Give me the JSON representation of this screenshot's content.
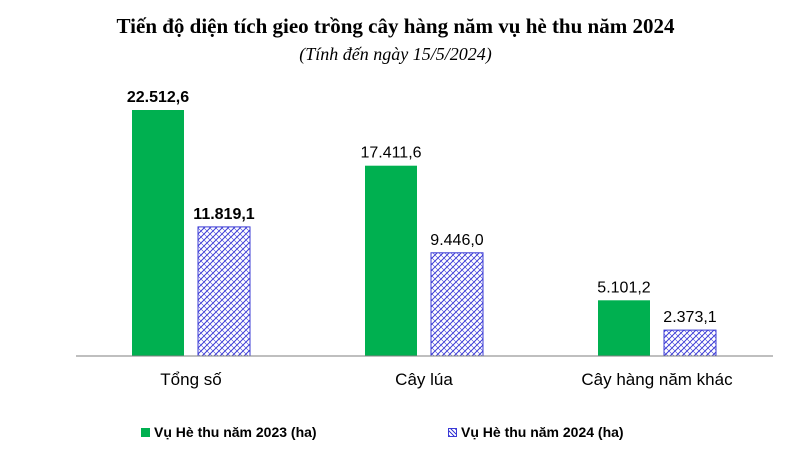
{
  "chart_data": {
    "type": "bar",
    "title": "Tiến độ diện tích gieo trồng cây hàng năm vụ hè thu năm 2024",
    "subtitle": "(Tính đến ngày 15/5/2024)",
    "categories": [
      "Tổng số",
      "Cây lúa",
      "Cây hàng năm khác"
    ],
    "series": [
      {
        "name": "Vụ Hè thu năm 2023 (ha)",
        "values": [
          22512.6,
          17411.6,
          5101.2
        ],
        "labels": [
          "22.512,6",
          "17.411,6",
          "5.101,2"
        ],
        "color": "#00b050",
        "pattern": "solid"
      },
      {
        "name": "Vụ Hè thu năm 2024 (ha)",
        "values": [
          11819.1,
          9446.0,
          2373.1
        ],
        "labels": [
          "11.819,1",
          "9.446,0",
          "2.373,1"
        ],
        "color": "#3b3bd6",
        "pattern": "hatch"
      }
    ],
    "bold_labels_category_index": 0,
    "ylim": [
      0,
      24000
    ],
    "grid": false,
    "legend_position": "bottom"
  }
}
